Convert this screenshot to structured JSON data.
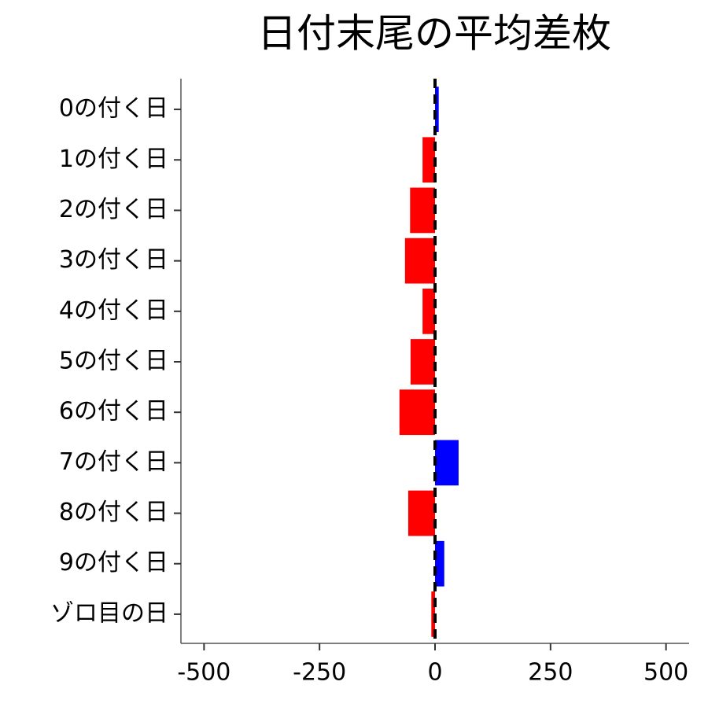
{
  "chart_data": {
    "type": "barh",
    "title": "日付末尾の平均差枚",
    "categories": [
      "0の付く日",
      "1の付く日",
      "2の付く日",
      "3の付く日",
      "4の付く日",
      "5の付く日",
      "6の付く日",
      "7の付く日",
      "8の付く日",
      "9の付く日",
      "ゾロ目の日"
    ],
    "values": [
      8,
      -27,
      -54,
      -65,
      -27,
      -53,
      -77,
      51,
      -58,
      20,
      -8
    ],
    "colors": [
      "#0000ff",
      "#ff0000",
      "#ff0000",
      "#ff0000",
      "#ff0000",
      "#ff0000",
      "#ff0000",
      "#0000ff",
      "#ff0000",
      "#0000ff",
      "#ff0000"
    ],
    "xlim": [
      -550,
      550
    ],
    "xticks": [
      -500,
      -250,
      0,
      250,
      500
    ],
    "vline": 0,
    "grid": false
  }
}
